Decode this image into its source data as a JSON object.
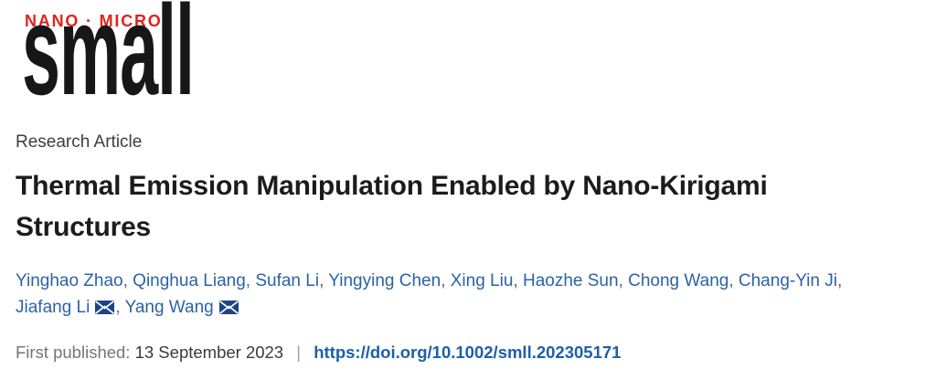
{
  "journal_logo": {
    "tagline": "NANO · MICRO",
    "name": "small",
    "tagline_color": "#e2231a",
    "name_color": "#171717"
  },
  "article": {
    "type_label": "Research Article",
    "title_line1": "Thermal Emission Manipulation Enabled by Nano-Kirigami",
    "title_line2": "Structures"
  },
  "authors": {
    "link_color": "#2b63a5",
    "separator": ",",
    "email_icon": "envelope-icon",
    "email_icon_color": "#1c4587",
    "list": [
      {
        "name": "Yinghao Zhao"
      },
      {
        "name": "Qinghua Liang"
      },
      {
        "name": "Sufan Li"
      },
      {
        "name": "Yingying Chen"
      },
      {
        "name": "Xing Liu"
      },
      {
        "name": "Haozhe Sun"
      },
      {
        "name": "Chong Wang"
      },
      {
        "name": "Chang-Yin Ji"
      },
      {
        "name": "Jiafang Li",
        "email": true,
        "new_line": true
      },
      {
        "name": "Yang Wang",
        "email": true
      }
    ]
  },
  "publication": {
    "first_published_label": "First published:",
    "date": "13 September 2023",
    "separator": "|",
    "doi_url": "https://doi.org/10.1002/smll.202305171",
    "doi_color": "#1d5fa8"
  }
}
